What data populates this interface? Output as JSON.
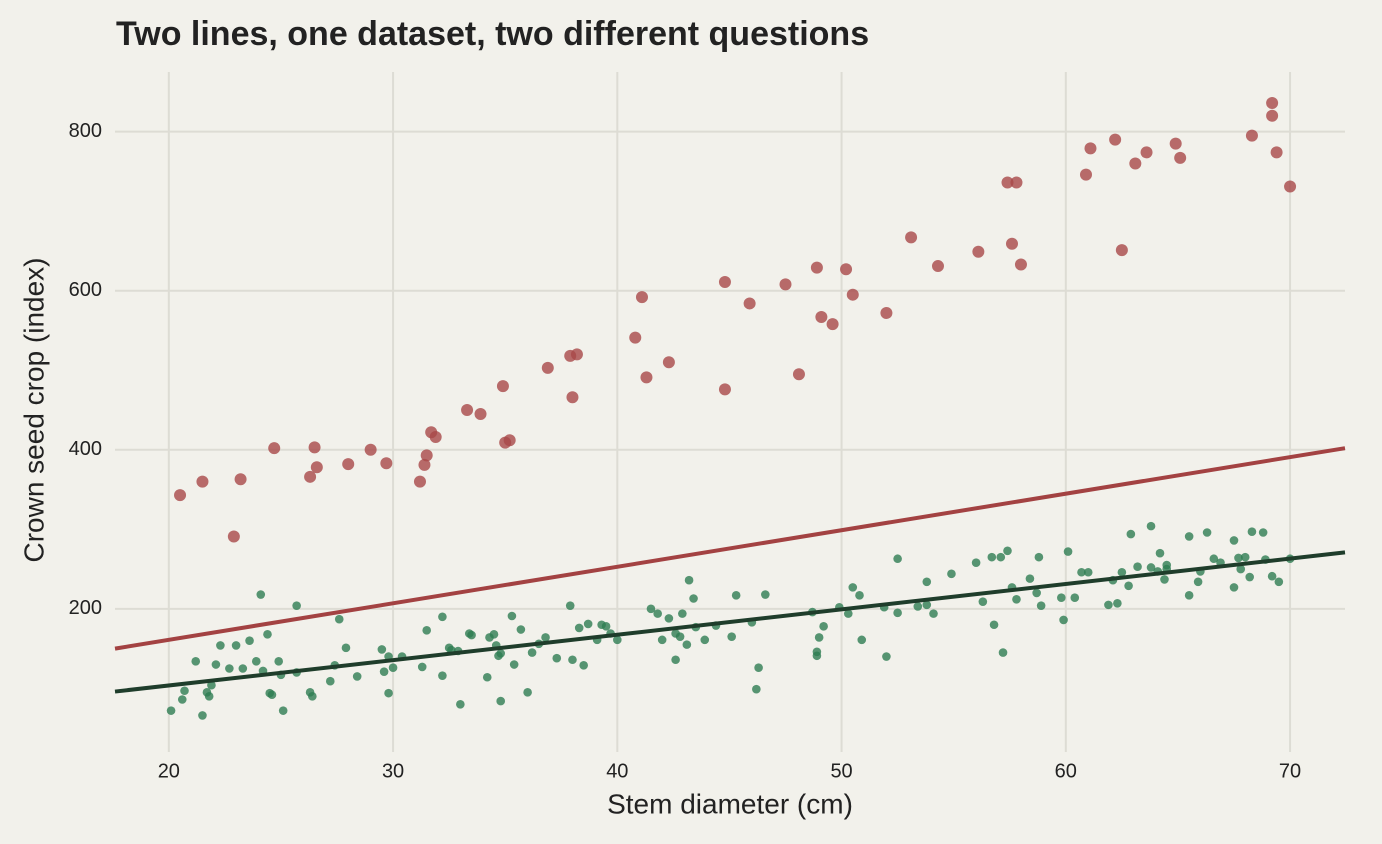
{
  "chart_data": {
    "type": "scatter",
    "title": "Two lines, one dataset, two different questions",
    "x_label": "Stem diameter (cm)",
    "y_label": "Crown seed crop (index)",
    "xlim": [
      17.6,
      72.45
    ],
    "ylim": [
      20,
      875
    ],
    "xticks": [
      20,
      30,
      40,
      50,
      60,
      70
    ],
    "yticks": [
      200,
      400,
      600,
      800
    ],
    "grid": true,
    "series": [
      {
        "color": "#a84848",
        "x": [
          20.5,
          21.5,
          22.9,
          23.2,
          24.7,
          26.3,
          26.5,
          26.6,
          28.0,
          29.0,
          29.7,
          31.2,
          31.4,
          31.5,
          31.7,
          31.9,
          33.3,
          33.9,
          34.9,
          35.0,
          35.2,
          36.9,
          37.9,
          38.0,
          38.2,
          40.8,
          41.1,
          41.3,
          42.3,
          44.8,
          44.8,
          45.9,
          47.5,
          48.1,
          48.9,
          49.1,
          49.6,
          50.2,
          50.5,
          52.0,
          53.1,
          54.3,
          56.1,
          57.4,
          57.6,
          57.8,
          58.0,
          60.9,
          61.1,
          62.2,
          62.5,
          63.1,
          63.6,
          64.9,
          65.1,
          68.3,
          69.2,
          69.2,
          69.4,
          70.0
        ],
        "values": [
          343,
          360,
          291,
          363,
          402,
          366,
          403,
          378,
          382,
          400,
          383,
          360,
          381,
          393,
          422,
          416,
          450,
          445,
          480,
          409,
          412,
          503,
          518,
          466,
          520,
          541,
          592,
          491,
          510,
          476,
          611,
          584,
          608,
          495,
          629,
          567,
          558,
          627,
          595,
          572,
          667,
          631,
          649,
          736,
          659,
          736,
          633,
          746,
          779,
          790,
          651,
          760,
          774,
          785,
          767,
          795,
          836,
          820,
          774,
          731
        ]
      },
      {
        "color": "#2e7d52",
        "x": [
          20.1,
          20.7,
          20.6,
          21.2,
          21.5,
          21.7,
          21.9,
          21.8,
          22.1,
          22.3,
          22.7,
          23.0,
          23.3,
          23.6,
          23.9,
          24.1,
          24.2,
          24.4,
          24.5,
          24.6,
          24.9,
          25.0,
          25.1,
          25.7,
          25.7,
          26.3,
          26.4,
          27.2,
          27.4,
          27.6,
          27.9,
          28.4,
          29.5,
          29.6,
          29.8,
          29.8,
          30.0,
          30.4,
          31.3,
          31.5,
          32.2,
          32.2,
          32.5,
          32.6,
          32.9,
          33.0,
          33.4,
          33.5,
          34.2,
          34.3,
          34.5,
          34.6,
          34.7,
          34.8,
          34.8,
          35.3,
          35.4,
          35.7,
          36.0,
          36.2,
          36.5,
          36.8,
          37.3,
          37.9,
          38.0,
          38.3,
          38.5,
          38.7,
          39.1,
          39.3,
          39.5,
          39.7,
          40.0,
          41.5,
          41.8,
          42.0,
          42.3,
          42.6,
          42.6,
          42.8,
          42.9,
          43.1,
          43.2,
          43.4,
          43.5,
          43.9,
          44.4,
          45.1,
          45.3,
          46.0,
          46.2,
          46.3,
          46.6,
          48.7,
          48.9,
          48.9,
          49.0,
          49.2,
          49.9,
          50.3,
          50.5,
          50.8,
          50.9,
          51.9,
          52.0,
          52.5,
          52.5,
          53.4,
          53.8,
          53.8,
          54.1,
          54.9,
          56.0,
          56.3,
          56.7,
          56.8,
          57.1,
          57.2,
          57.4,
          57.6,
          57.8,
          58.4,
          58.7,
          58.8,
          58.9,
          59.8,
          59.9,
          60.1,
          60.4,
          60.7,
          61.0,
          61.9,
          62.1,
          62.3,
          62.5,
          62.8,
          62.9,
          63.2,
          63.8,
          63.8,
          64.1,
          64.2,
          64.4,
          64.5,
          64.5,
          65.5,
          65.5,
          65.9,
          66.0,
          66.3,
          66.6,
          66.9,
          67.5,
          67.5,
          67.7,
          67.8,
          68.0,
          68.2,
          68.3,
          68.8,
          68.9,
          69.2,
          69.5,
          70.0
        ],
        "values": [
          72,
          97,
          86,
          134,
          66,
          95,
          104,
          90,
          130,
          154,
          125,
          154,
          125,
          160,
          134,
          218,
          122,
          168,
          94,
          92,
          134,
          117,
          72,
          204,
          120,
          95,
          90,
          109,
          129,
          187,
          151,
          115,
          149,
          121,
          94,
          140,
          126,
          140,
          127,
          173,
          190,
          116,
          151,
          148,
          147,
          80,
          169,
          167,
          114,
          164,
          168,
          154,
          141,
          84,
          144,
          191,
          130,
          174,
          95,
          145,
          156,
          164,
          138,
          204,
          136,
          176,
          129,
          181,
          161,
          180,
          178,
          169,
          161,
          200,
          194,
          161,
          188,
          169,
          136,
          165,
          194,
          155,
          236,
          213,
          177,
          161,
          179,
          165,
          217,
          183,
          99,
          126,
          218,
          196,
          146,
          141,
          164,
          178,
          202,
          194,
          227,
          217,
          161,
          202,
          140,
          195,
          263,
          203,
          234,
          205,
          194,
          244,
          258,
          209,
          265,
          180,
          265,
          145,
          273,
          227,
          212,
          238,
          220,
          265,
          204,
          214,
          186,
          272,
          214,
          246,
          246,
          205,
          236,
          207,
          246,
          229,
          294,
          253,
          304,
          252,
          247,
          270,
          237,
          250,
          255,
          217,
          291,
          234,
          247,
          296,
          263,
          258,
          227,
          286,
          264,
          250,
          265,
          240,
          297,
          296,
          262,
          241,
          234,
          263
        ]
      }
    ],
    "fit_lines": [
      {
        "color": "#a34242",
        "x": [
          17.6,
          72.45
        ],
        "values": [
          150,
          402
        ]
      },
      {
        "color": "#1f3d2b",
        "x": [
          17.6,
          72.45
        ],
        "values": [
          96,
          271
        ]
      }
    ]
  }
}
